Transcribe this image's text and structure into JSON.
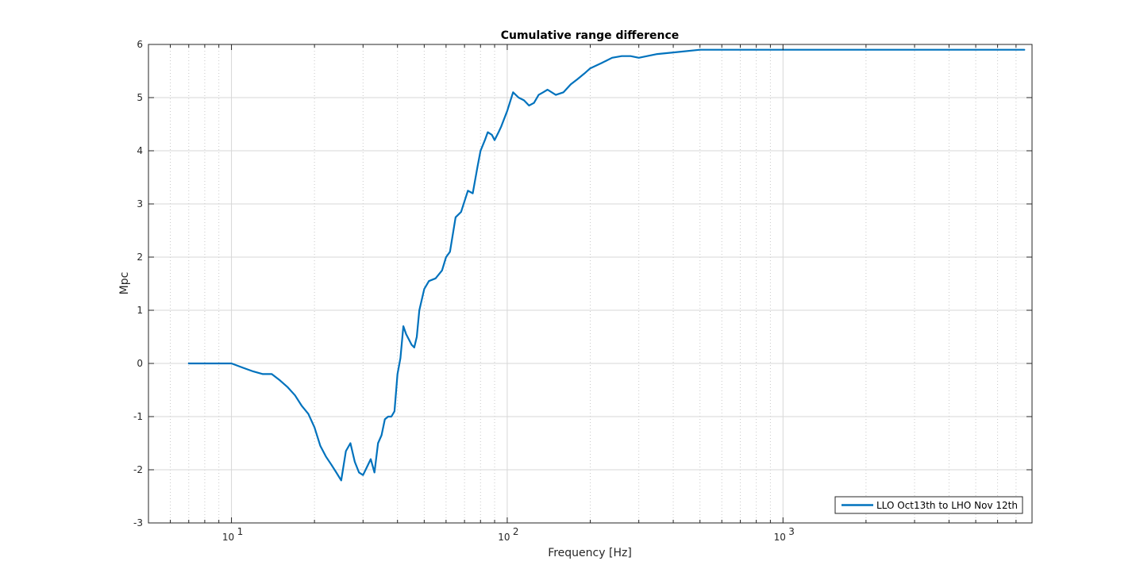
{
  "chart_data": {
    "type": "line",
    "title": "Cumulative range difference",
    "xlabel": "Frequency [Hz]",
    "ylabel": "Mpc",
    "xscale": "log",
    "xlim": [
      5,
      8000
    ],
    "ylim": [
      -3,
      6
    ],
    "x_ticks": [
      10,
      100,
      1000
    ],
    "x_tick_labels": [
      {
        "base": "10",
        "exp": "1"
      },
      {
        "base": "10",
        "exp": "2"
      },
      {
        "base": "10",
        "exp": "3"
      }
    ],
    "y_ticks": [
      -3,
      -2,
      -1,
      0,
      1,
      2,
      3,
      4,
      5,
      6
    ],
    "y_tick_labels": [
      "-3",
      "-2",
      "-1",
      "0",
      "1",
      "2",
      "3",
      "4",
      "5",
      "6"
    ],
    "grid": true,
    "minor_grid": true,
    "legend_position": "bottom-right",
    "series": [
      {
        "name": "LLO Oct13th to LHO Nov 12th",
        "color": "#0072BD",
        "x": [
          7,
          8,
          9,
          10,
          11,
          12,
          13,
          14,
          15,
          16,
          17,
          18,
          19,
          20,
          21,
          22,
          23,
          24,
          25,
          26,
          27,
          28,
          29,
          30,
          31,
          32,
          33,
          34,
          35,
          36,
          37,
          38,
          39,
          40,
          41,
          42,
          43,
          44,
          45,
          46,
          47,
          48,
          50,
          52,
          55,
          58,
          60,
          62,
          65,
          68,
          70,
          72,
          75,
          78,
          80,
          83,
          85,
          88,
          90,
          93,
          95,
          100,
          105,
          110,
          115,
          120,
          125,
          130,
          135,
          140,
          150,
          160,
          170,
          180,
          190,
          200,
          220,
          240,
          260,
          280,
          300,
          350,
          400,
          500,
          600,
          700,
          800,
          1000,
          1500,
          2000,
          3000,
          5000,
          7500
        ],
        "y": [
          0,
          0,
          0,
          0,
          -0.08,
          -0.15,
          -0.2,
          -0.2,
          -0.32,
          -0.45,
          -0.6,
          -0.8,
          -0.95,
          -1.2,
          -1.55,
          -1.75,
          -1.9,
          -2.05,
          -2.2,
          -1.65,
          -1.5,
          -1.85,
          -2.05,
          -2.1,
          -1.95,
          -1.8,
          -2.05,
          -1.5,
          -1.35,
          -1.05,
          -1.0,
          -1.0,
          -0.9,
          -0.2,
          0.1,
          0.7,
          0.55,
          0.45,
          0.35,
          0.3,
          0.5,
          1.0,
          1.4,
          1.55,
          1.6,
          1.75,
          2.0,
          2.1,
          2.75,
          2.85,
          3.05,
          3.25,
          3.2,
          3.7,
          4.0,
          4.2,
          4.35,
          4.3,
          4.2,
          4.35,
          4.45,
          4.75,
          5.1,
          5.0,
          4.95,
          4.85,
          4.9,
          5.05,
          5.1,
          5.15,
          5.05,
          5.1,
          5.25,
          5.35,
          5.45,
          5.55,
          5.65,
          5.75,
          5.78,
          5.78,
          5.75,
          5.82,
          5.85,
          5.9,
          5.9,
          5.9,
          5.9,
          5.9,
          5.9,
          5.9,
          5.9,
          5.9,
          5.9
        ]
      }
    ]
  }
}
